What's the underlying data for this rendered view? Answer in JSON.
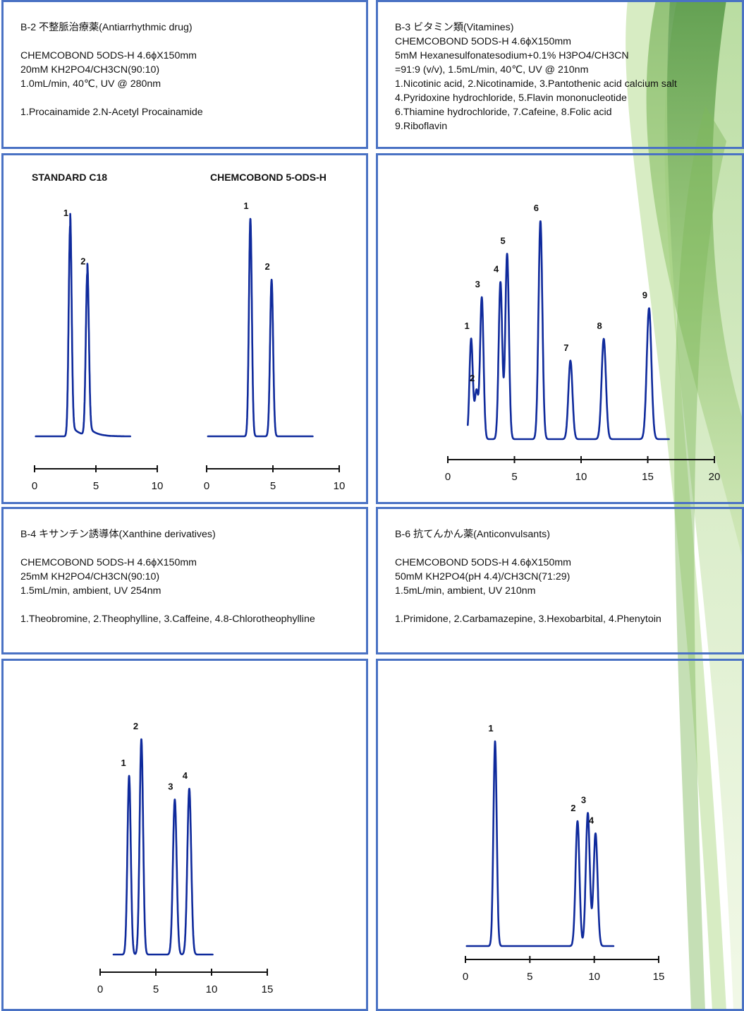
{
  "panels": {
    "b2": {
      "title": "B-2 不整脈治療薬(Antiarrhythmic drug)",
      "lines": [
        "CHEMCOBOND 5ODS-H 4.6ϕX150mm",
        "20mM KH2PO4/CH3CN(90:10)",
        "1.0mL/min, 40℃, UV @ 280nm"
      ],
      "peaks_text": "1.Procainamide 2.N-Acetyl Procainamide"
    },
    "b3": {
      "title": "B-3 ビタミン類(Vitamines)",
      "lines": [
        "CHEMCOBOND 5ODS-H 4.6ϕX150mm",
        "5mM Hexanesulfonatesodium+0.1% H3PO4/CH3CN",
        "=91:9 (v/v), 1.5mL/min, 40℃, UV @ 210nm",
        "1.Nicotinic acid, 2.Nicotinamide, 3.Pantothenic acid calcium salt",
        "4.Pyridoxine hydrochloride, 5.Flavin mononucleotide",
        "6.Thiamine hydrochloride, 7.Cafeine, 8.Folic acid",
        "9.Riboflavin"
      ]
    },
    "b4": {
      "title": "B-4 キサンチン誘導体(Xanthine derivatives)",
      "lines": [
        "CHEMCOBOND 5ODS-H 4.6ϕX150mm",
        "25mM KH2PO4/CH3CN(90:10)",
        "1.5mL/min, ambient, UV 254nm"
      ],
      "peaks_text": "1.Theobromine, 2.Theophylline, 3.Caffeine, 4.8-Chlorotheophylline"
    },
    "b6": {
      "title": "B-6 抗てんかん薬(Anticonvulsants)",
      "lines": [
        "CHEMCOBOND 5ODS-H 4.6ϕX150mm",
        "50mM KH2PO4(pH 4.4)/CH3CN(71:29)",
        "1.5mL/min, ambient, UV 210nm"
      ],
      "peaks_text": "1.Primidone, 2.Carbamazepine, 3.Hexobarbital, 4.Phenytoin"
    }
  },
  "colors": {
    "border": "#4a72c4",
    "trace": "#0f2a9c"
  },
  "chart_data": [
    {
      "id": "b2_standard",
      "type": "line",
      "title": "STANDARD C18",
      "xlim": [
        0,
        10
      ],
      "x_ticks": [
        "0",
        "5",
        "10"
      ],
      "peaks": [
        {
          "label": "1",
          "rt": 2.9,
          "height": 1.0
        },
        {
          "label": "2",
          "rt": 4.3,
          "height": 0.77
        }
      ]
    },
    {
      "id": "b2_chemcobond",
      "type": "line",
      "title": "CHEMCOBOND 5-ODS-H",
      "xlim": [
        0,
        10
      ],
      "x_ticks": [
        "0",
        "5",
        "10"
      ],
      "peaks": [
        {
          "label": "1",
          "rt": 3.3,
          "height": 1.0
        },
        {
          "label": "2",
          "rt": 4.9,
          "height": 0.72
        }
      ]
    },
    {
      "id": "b3",
      "type": "line",
      "xlim": [
        0,
        20
      ],
      "x_ticks": [
        "0",
        "5",
        "10",
        "15",
        "20"
      ],
      "peaks": [
        {
          "label": "1",
          "rt": 1.75,
          "height": 0.46
        },
        {
          "label": "2",
          "rt": 2.15,
          "height": 0.22
        },
        {
          "label": "3",
          "rt": 2.55,
          "height": 0.65
        },
        {
          "label": "4",
          "rt": 3.95,
          "height": 0.72
        },
        {
          "label": "5",
          "rt": 4.45,
          "height": 0.85
        },
        {
          "label": "6",
          "rt": 6.95,
          "height": 1.0
        },
        {
          "label": "7",
          "rt": 9.2,
          "height": 0.36
        },
        {
          "label": "8",
          "rt": 11.7,
          "height": 0.46
        },
        {
          "label": "9",
          "rt": 15.1,
          "height": 0.6
        }
      ]
    },
    {
      "id": "b4",
      "type": "line",
      "xlim": [
        0,
        15
      ],
      "x_ticks": [
        "0",
        "5",
        "10",
        "15"
      ],
      "peaks": [
        {
          "label": "1",
          "rt": 2.6,
          "height": 0.83
        },
        {
          "label": "2",
          "rt": 3.7,
          "height": 1.0
        },
        {
          "label": "3",
          "rt": 6.7,
          "height": 0.72
        },
        {
          "label": "4",
          "rt": 8.0,
          "height": 0.77
        }
      ]
    },
    {
      "id": "b6",
      "type": "line",
      "xlim": [
        0,
        15
      ],
      "x_ticks": [
        "0",
        "5",
        "10",
        "15"
      ],
      "peaks": [
        {
          "label": "1",
          "rt": 2.3,
          "height": 1.0
        },
        {
          "label": "2",
          "rt": 8.7,
          "height": 0.61
        },
        {
          "label": "3",
          "rt": 9.5,
          "height": 0.65
        },
        {
          "label": "4",
          "rt": 10.1,
          "height": 0.55
        }
      ]
    }
  ]
}
